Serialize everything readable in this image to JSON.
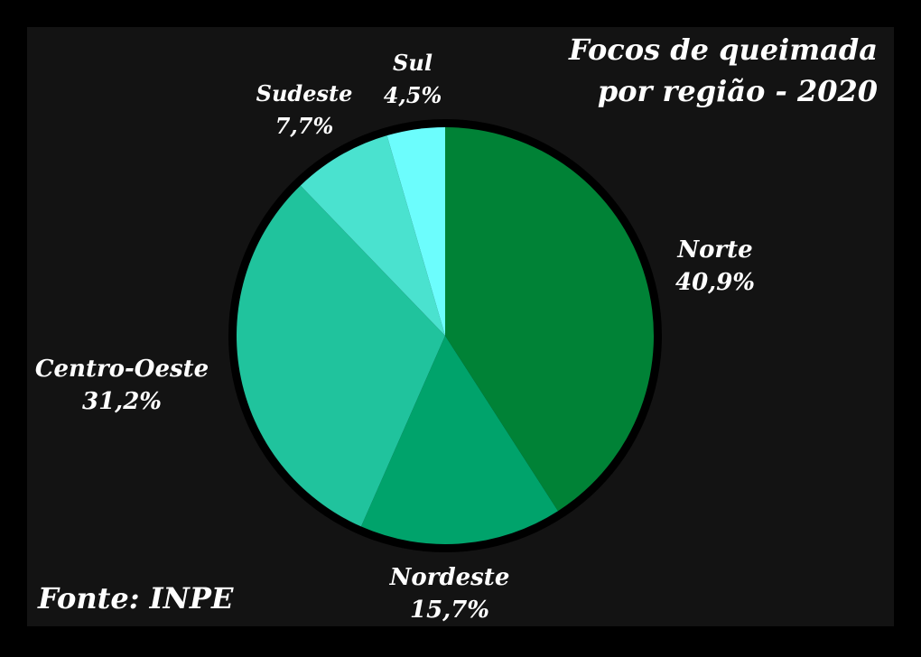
{
  "chart_data": {
    "type": "pie",
    "title_lines": [
      "Focos de queimada",
      "por região - 2020"
    ],
    "source": "Fonte: INPE",
    "slices": [
      {
        "name": "Norte",
        "value": 40.9,
        "value_label": "40,9%",
        "color": "#008236"
      },
      {
        "name": "Nordeste",
        "value": 15.7,
        "value_label": "15,7%",
        "color": "#00a36b"
      },
      {
        "name": "Centro-Oeste",
        "value": 31.2,
        "value_label": "31,2%",
        "color": "#20c39d"
      },
      {
        "name": "Sudeste",
        "value": 7.7,
        "value_label": "7,7%",
        "color": "#4ae2cf"
      },
      {
        "name": "Sul",
        "value": 4.5,
        "value_label": "4,5%",
        "color": "#6cfdfd"
      }
    ],
    "start_angle_deg": 0,
    "direction": "clockwise",
    "legend": "none",
    "background_color": "#131313",
    "outline_color": "#000000"
  }
}
